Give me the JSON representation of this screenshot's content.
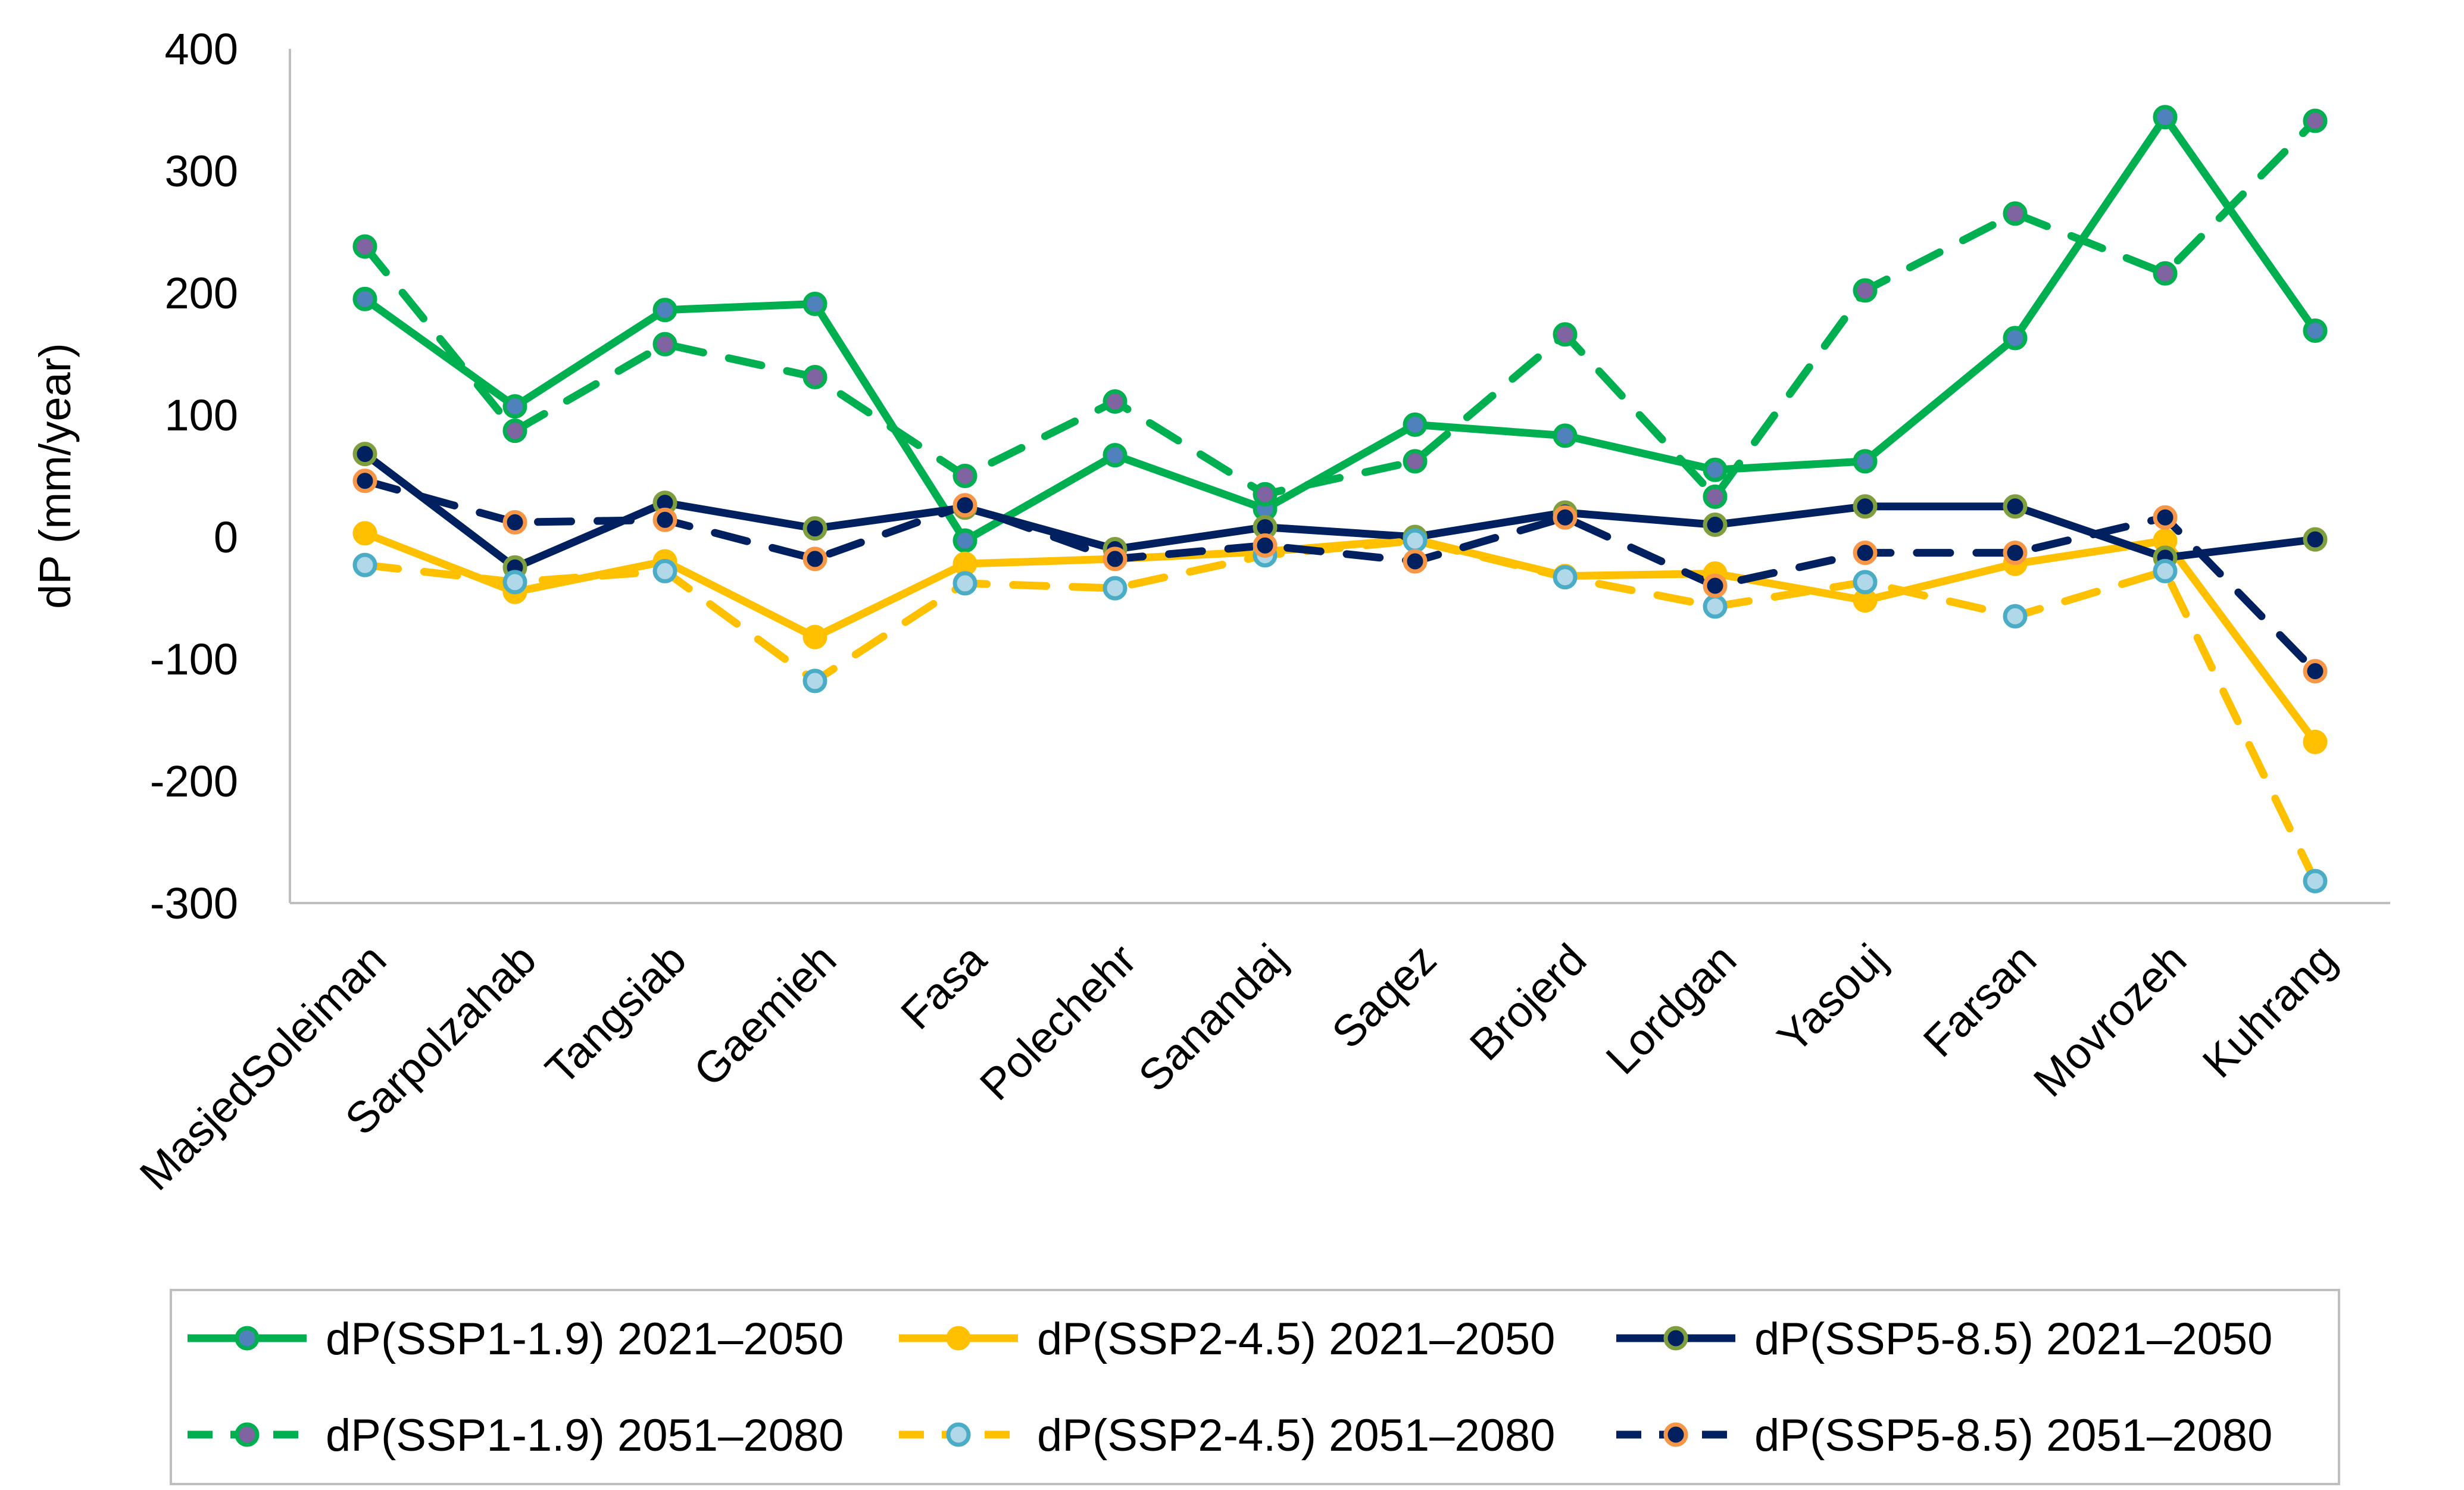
{
  "chart_data": {
    "type": "line",
    "title": "",
    "xlabel": "",
    "ylabel": "dP (mm/year)",
    "ylim": [
      -300,
      400
    ],
    "yticks": [
      400,
      300,
      200,
      100,
      0,
      -100,
      -200,
      -300
    ],
    "ytick_labels": [
      "400",
      "300",
      "200",
      "100",
      "0",
      "-100",
      "-200",
      "-300"
    ],
    "grid": false,
    "legend_position": "bottom",
    "categories": [
      "MasjedSoleiman",
      "Sarpolzahab",
      "Tangsiab",
      "Gaemieh",
      "Fasa",
      "Polechehr",
      "Sanandaj",
      "Saqez",
      "Brojerd",
      "Lordgan",
      "Yasouj",
      "Farsan",
      "Movrozeh",
      "Kuhrang"
    ],
    "series": [
      {
        "name": "dP(SSP1-1.9) 2021–2050",
        "color": "#00B050",
        "marker_fill": "#4F81BD",
        "dashed": false,
        "values": [
          195,
          107,
          186,
          191,
          -3,
          67,
          23,
          92,
          83,
          55,
          62,
          163,
          344,
          169
        ]
      },
      {
        "name": "dP(SSP2-4.5) 2021–2050",
        "color": "#FFC000",
        "marker_fill": "#FFC000",
        "dashed": false,
        "values": [
          3,
          -45,
          -20,
          -82,
          -22,
          -18,
          -12,
          -2,
          -32,
          -30,
          -52,
          -22,
          -3,
          -168
        ]
      },
      {
        "name": "dP(SSP5-8.5) 2021–2050",
        "color": "#002060",
        "marker_fill": "#002060",
        "marker_edge": "#7F9F3F",
        "dashed": false,
        "values": [
          68,
          -25,
          28,
          7,
          24,
          -10,
          8,
          0,
          20,
          10,
          25,
          25,
          -17,
          -2
        ]
      },
      {
        "name": "dP(SSP1-1.9) 2051–2080",
        "color": "#00B050",
        "marker_fill": "#8064A2",
        "dashed": true,
        "values": [
          238,
          87,
          158,
          131,
          50,
          111,
          35,
          62,
          166,
          33,
          202,
          265,
          216,
          341
        ]
      },
      {
        "name": "dP(SSP2-4.5) 2051–2080",
        "color": "#FFC000",
        "marker_fill": "#B0D8E8",
        "marker_edge": "#4BACC6",
        "dashed": true,
        "values": [
          -23,
          -37,
          -28,
          -118,
          -38,
          -42,
          -15,
          -3,
          -33,
          -57,
          -37,
          -65,
          -28,
          -282
        ]
      },
      {
        "name": "dP(SSP5-8.5) 2051–2080",
        "color": "#002060",
        "marker_fill": "#002060",
        "marker_edge": "#F79646",
        "dashed": true,
        "values": [
          46,
          12,
          14,
          -18,
          26,
          -18,
          -7,
          -20,
          16,
          -40,
          -13,
          -13,
          16,
          -110
        ]
      }
    ]
  }
}
